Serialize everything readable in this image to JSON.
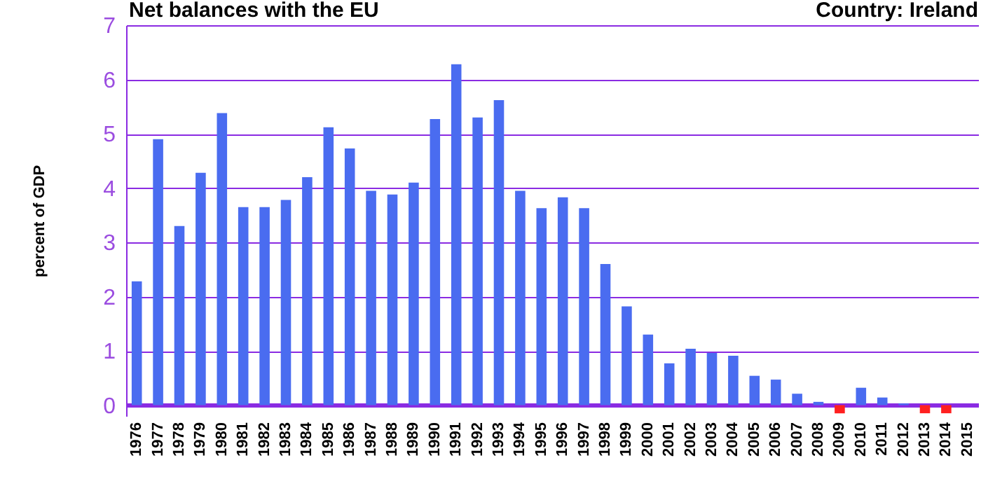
{
  "chart_data": {
    "type": "bar",
    "title": "Net balances with the EU",
    "subtitle": "Country: Ireland",
    "ylabel": "percent of GDP",
    "categories": [
      "1976",
      "1977",
      "1978",
      "1979",
      "1980",
      "1981",
      "1982",
      "1983",
      "1984",
      "1985",
      "1986",
      "1987",
      "1988",
      "1989",
      "1990",
      "1991",
      "1992",
      "1993",
      "1994",
      "1995",
      "1996",
      "1997",
      "1998",
      "1999",
      "2000",
      "2001",
      "2002",
      "2003",
      "2004",
      "2005",
      "2006",
      "2007",
      "2008",
      "2009",
      "2010",
      "2011",
      "2012",
      "2013",
      "2014",
      "2015"
    ],
    "values": [
      2.28,
      4.9,
      3.3,
      4.28,
      5.38,
      3.65,
      3.65,
      3.78,
      4.2,
      5.12,
      4.73,
      3.95,
      3.88,
      4.1,
      5.27,
      6.28,
      5.3,
      5.62,
      3.95,
      3.63,
      3.83,
      3.63,
      2.6,
      1.82,
      1.3,
      0.77,
      1.04,
      0.96,
      0.91,
      0.54,
      0.47,
      0.21,
      0.06,
      -0.15,
      0.32,
      0.14,
      0.03,
      -0.15,
      -0.15,
      null
    ],
    "colors": [
      "#4a6cf0",
      "#4a6cf0",
      "#4a6cf0",
      "#4a6cf0",
      "#4a6cf0",
      "#4a6cf0",
      "#4a6cf0",
      "#4a6cf0",
      "#4a6cf0",
      "#4a6cf0",
      "#4a6cf0",
      "#4a6cf0",
      "#4a6cf0",
      "#4a6cf0",
      "#4a6cf0",
      "#4a6cf0",
      "#4a6cf0",
      "#4a6cf0",
      "#4a6cf0",
      "#4a6cf0",
      "#4a6cf0",
      "#4a6cf0",
      "#4a6cf0",
      "#4a6cf0",
      "#4a6cf0",
      "#4a6cf0",
      "#4a6cf0",
      "#4a6cf0",
      "#4a6cf0",
      "#4a6cf0",
      "#4a6cf0",
      "#4a6cf0",
      "#4a6cf0",
      "#ff2020",
      "#4a6cf0",
      "#4a6cf0",
      "#4a6cf0",
      "#ff2020",
      "#ff2020",
      "#4a6cf0"
    ],
    "ylim": [
      -0.2,
      7
    ],
    "yticks": [
      0,
      1,
      2,
      3,
      4,
      5,
      6,
      7
    ],
    "grid": "y"
  }
}
